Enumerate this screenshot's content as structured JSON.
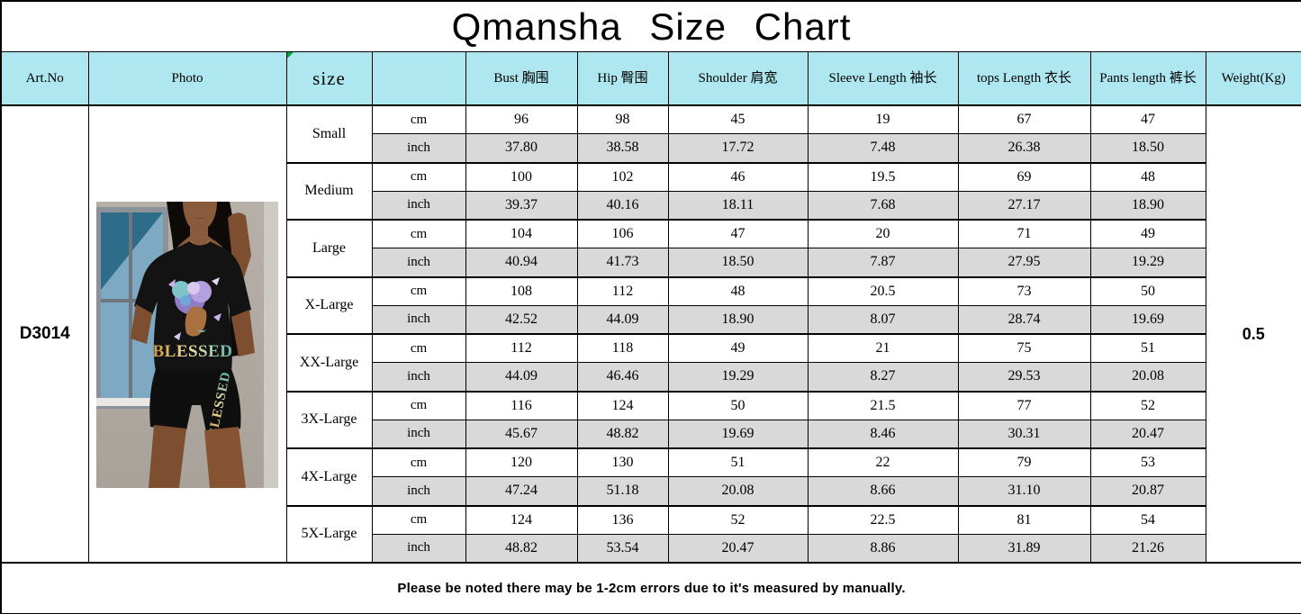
{
  "title": "Qmansha  Size  Chart",
  "header": {
    "art_no": "Art.No",
    "photo": "Photo",
    "size": "size",
    "unit": "",
    "bust": "Bust 胸围",
    "hip": "Hip 臀围",
    "shoulder": "Shoulder 肩宽",
    "sleeve": "Sleeve Length 袖长",
    "tops": "tops Length 衣长",
    "pants": "Pants length 裤长",
    "weight": "Weight(Kg)"
  },
  "product": {
    "art_no": "D3014",
    "weight": "0.5",
    "shirt_text": "BLESSED",
    "shorts_text": "BLESSED"
  },
  "unit_labels": {
    "cm": "cm",
    "inch": "inch"
  },
  "rows": [
    {
      "size": "Small",
      "cm": [
        "96",
        "98",
        "45",
        "19",
        "67",
        "47"
      ],
      "inch": [
        "37.80",
        "38.58",
        "17.72",
        "7.48",
        "26.38",
        "18.50"
      ]
    },
    {
      "size": "Medium",
      "cm": [
        "100",
        "102",
        "46",
        "19.5",
        "69",
        "48"
      ],
      "inch": [
        "39.37",
        "40.16",
        "18.11",
        "7.68",
        "27.17",
        "18.90"
      ]
    },
    {
      "size": "Large",
      "cm": [
        "104",
        "106",
        "47",
        "20",
        "71",
        "49"
      ],
      "inch": [
        "40.94",
        "41.73",
        "18.50",
        "7.87",
        "27.95",
        "19.29"
      ]
    },
    {
      "size": "X-Large",
      "cm": [
        "108",
        "112",
        "48",
        "20.5",
        "73",
        "50"
      ],
      "inch": [
        "42.52",
        "44.09",
        "18.90",
        "8.07",
        "28.74",
        "19.69"
      ]
    },
    {
      "size": "XX-Large",
      "cm": [
        "112",
        "118",
        "49",
        "21",
        "75",
        "51"
      ],
      "inch": [
        "44.09",
        "46.46",
        "19.29",
        "8.27",
        "29.53",
        "20.08"
      ]
    },
    {
      "size": "3X-Large",
      "cm": [
        "116",
        "124",
        "50",
        "21.5",
        "77",
        "52"
      ],
      "inch": [
        "45.67",
        "48.82",
        "19.69",
        "8.46",
        "30.31",
        "20.47"
      ]
    },
    {
      "size": "4X-Large",
      "cm": [
        "120",
        "130",
        "51",
        "22",
        "79",
        "53"
      ],
      "inch": [
        "47.24",
        "51.18",
        "20.08",
        "8.66",
        "31.10",
        "20.87"
      ]
    },
    {
      "size": "5X-Large",
      "cm": [
        "124",
        "136",
        "52",
        "22.5",
        "81",
        "54"
      ],
      "inch": [
        "48.82",
        "53.54",
        "20.47",
        "8.86",
        "31.89",
        "21.26"
      ]
    }
  ],
  "footer_note": "Please be noted there may be 1-2cm errors due to it's measured by manually.",
  "colors": {
    "header_bg": "#aee7f0",
    "alt_row_bg": "#d9d9d9",
    "border": "#000000",
    "comment_marker": "#00a63f"
  }
}
